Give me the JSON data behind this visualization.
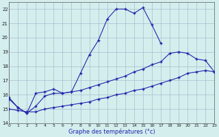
{
  "background_color": "#d4eeee",
  "grid_color": "#aabbcc",
  "line_color": "#2222aa",
  "xlabel": "Graphe des températures (°c)",
  "xticks": [
    0,
    1,
    2,
    3,
    4,
    5,
    6,
    7,
    8,
    9,
    10,
    11,
    12,
    13,
    14,
    15,
    16,
    17,
    18,
    19,
    20,
    21,
    22,
    23
  ],
  "yticks": [
    14,
    15,
    16,
    17,
    18,
    19,
    20,
    21,
    22
  ],
  "xlim": [
    0,
    23
  ],
  "ylim": [
    14.0,
    22.5
  ],
  "curve1_x": [
    0,
    1,
    2,
    3,
    4,
    5,
    6,
    7,
    8,
    9,
    10,
    11,
    12,
    13,
    14,
    15,
    16,
    17
  ],
  "curve1_y": [
    15.8,
    15.1,
    14.7,
    16.1,
    16.2,
    16.4,
    16.1,
    16.2,
    17.5,
    18.8,
    19.8,
    21.3,
    22.0,
    22.0,
    21.7,
    22.1,
    20.9,
    19.6
  ],
  "curve2_x": [
    0,
    1,
    2,
    3,
    4,
    5,
    6,
    7,
    8,
    9,
    10,
    11,
    12,
    13,
    14,
    15,
    16,
    17,
    18,
    19,
    20,
    21,
    22,
    23
  ],
  "curve2_y": [
    15.7,
    15.1,
    14.7,
    15.2,
    15.9,
    16.1,
    16.1,
    16.2,
    16.3,
    16.5,
    16.7,
    16.9,
    17.1,
    17.3,
    17.6,
    17.8,
    18.1,
    18.3,
    18.9,
    19.0,
    18.9,
    18.5,
    18.4,
    17.6
  ],
  "curve3_x": [
    0,
    1,
    2,
    3,
    4,
    5,
    6,
    7,
    8,
    9,
    10,
    11,
    12,
    13,
    14,
    15,
    16,
    17,
    18,
    19,
    20,
    21,
    22,
    23
  ],
  "curve3_y": [
    15.0,
    14.9,
    14.8,
    14.8,
    15.0,
    15.1,
    15.2,
    15.3,
    15.4,
    15.5,
    15.7,
    15.8,
    16.0,
    16.1,
    16.3,
    16.4,
    16.6,
    16.8,
    17.0,
    17.2,
    17.5,
    17.6,
    17.7,
    17.6
  ]
}
